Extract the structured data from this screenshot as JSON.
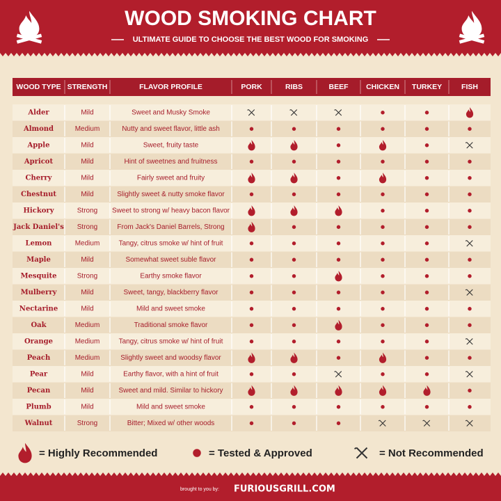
{
  "header": {
    "title": "WOOD SMOKING CHART",
    "subtitle": "ULTIMATE GUIDE TO CHOOSE THE BEST WOOD FOR SMOKING"
  },
  "table": {
    "columns": [
      "WOOD TYPE",
      "STRENGTH",
      "FLAVOR PROFILE",
      "PORK",
      "RIBS",
      "BEEF",
      "CHICKEN",
      "TURKEY",
      "FISH"
    ],
    "rows": [
      {
        "wood": "Alder",
        "strength": "Mild",
        "flavor": "Sweet and Musky Smoke",
        "ratings": [
          0,
          0,
          0,
          1,
          1,
          2
        ]
      },
      {
        "wood": "Almond",
        "strength": "Medium",
        "flavor": "Nutty and sweet flavor, little ash",
        "ratings": [
          1,
          1,
          1,
          1,
          1,
          1
        ]
      },
      {
        "wood": "Apple",
        "strength": "Mild",
        "flavor": "Sweet, fruity taste",
        "ratings": [
          2,
          2,
          1,
          2,
          1,
          0
        ]
      },
      {
        "wood": "Apricot",
        "strength": "Mild",
        "flavor": "Hint of sweetnes and fruitness",
        "ratings": [
          1,
          1,
          1,
          1,
          1,
          1
        ]
      },
      {
        "wood": "Cherry",
        "strength": "Mild",
        "flavor": "Fairly sweet and fruity",
        "ratings": [
          2,
          2,
          1,
          2,
          1,
          1
        ]
      },
      {
        "wood": "Chestnut",
        "strength": "Mild",
        "flavor": "Slightly sweet & nutty smoke flavor",
        "ratings": [
          1,
          1,
          1,
          1,
          1,
          1
        ]
      },
      {
        "wood": "Hickory",
        "strength": "Strong",
        "flavor": "Sweet to strong w/ heavy bacon flavor",
        "ratings": [
          2,
          2,
          2,
          1,
          1,
          1
        ]
      },
      {
        "wood": "Jack Daniel's",
        "strength": "Strong",
        "flavor": "From Jack's Daniel Barrels, Strong",
        "ratings": [
          2,
          1,
          1,
          1,
          1,
          1
        ]
      },
      {
        "wood": "Lemon",
        "strength": "Medium",
        "flavor": "Tangy, citrus smoke w/ hint of fruit",
        "ratings": [
          1,
          1,
          1,
          1,
          1,
          0
        ]
      },
      {
        "wood": "Maple",
        "strength": "Mild",
        "flavor": "Somewhat sweet suble flavor",
        "ratings": [
          1,
          1,
          1,
          1,
          1,
          1
        ]
      },
      {
        "wood": "Mesquite",
        "strength": "Strong",
        "flavor": "Earthy smoke flavor",
        "ratings": [
          1,
          1,
          2,
          1,
          1,
          1
        ]
      },
      {
        "wood": "Mulberry",
        "strength": "Mild",
        "flavor": "Sweet, tangy, blackberry flavor",
        "ratings": [
          1,
          1,
          1,
          1,
          1,
          0
        ]
      },
      {
        "wood": "Nectarine",
        "strength": "Mild",
        "flavor": "Mild and sweet smoke",
        "ratings": [
          1,
          1,
          1,
          1,
          1,
          1
        ]
      },
      {
        "wood": "Oak",
        "strength": "Medium",
        "flavor": "Traditional smoke flavor",
        "ratings": [
          1,
          1,
          2,
          1,
          1,
          1
        ]
      },
      {
        "wood": "Orange",
        "strength": "Medium",
        "flavor": "Tangy, citrus smoke w/ hint of fruit",
        "ratings": [
          1,
          1,
          1,
          1,
          1,
          0
        ]
      },
      {
        "wood": "Peach",
        "strength": "Medium",
        "flavor": "Slightly sweet and woodsy flavor",
        "ratings": [
          2,
          2,
          1,
          2,
          1,
          1
        ]
      },
      {
        "wood": "Pear",
        "strength": "Mild",
        "flavor": "Earthy flavor, with a hint of fruit",
        "ratings": [
          1,
          1,
          0,
          1,
          1,
          0
        ]
      },
      {
        "wood": "Pecan",
        "strength": "Mild",
        "flavor": "Sweet and mild. Similar to hickory",
        "ratings": [
          2,
          2,
          2,
          2,
          2,
          1
        ]
      },
      {
        "wood": "Plumb",
        "strength": "Mild",
        "flavor": "Mild and sweet smoke",
        "ratings": [
          1,
          1,
          1,
          1,
          1,
          1
        ]
      },
      {
        "wood": "Walnut",
        "strength": "Strong",
        "flavor": "Bitter; Mixed w/ other woods",
        "ratings": [
          1,
          1,
          1,
          0,
          0,
          0
        ]
      }
    ]
  },
  "legend": [
    {
      "label": "= Highly Recommended",
      "level": 2
    },
    {
      "label": "= Tested & Approved",
      "level": 1
    },
    {
      "label": "= Not Recommended",
      "level": 0
    }
  ],
  "footer": {
    "credit": "brought to you by:",
    "site": "FURIOUSGRILL.COM"
  }
}
